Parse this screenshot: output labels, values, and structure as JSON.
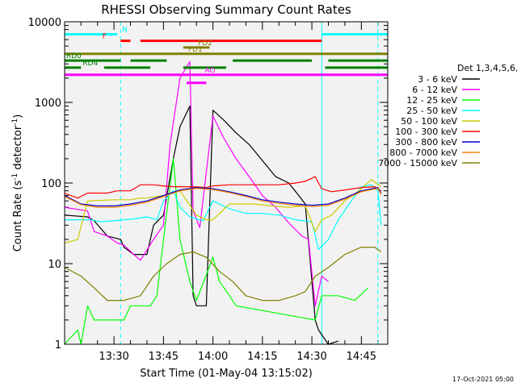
{
  "chart_data": {
    "type": "line",
    "title": "RHESSI Observing Summary Count Rates",
    "xlabel": "Start Time (01-May-04 13:15:02)",
    "ylabel": "Count Rate (s",
    "ylabel_sup1": "-1",
    "ylabel_mid": " detector",
    "ylabel_sup2": "-1",
    "ylabel_end": ")",
    "y_scale": "log",
    "ylim": [
      1,
      10000
    ],
    "xlim": [
      "13:15:02",
      "14:53:00"
    ],
    "x_ticks": [
      "13:30",
      "13:45",
      "14:00",
      "14:15",
      "14:30",
      "14:45"
    ],
    "y_ticks": [
      "1",
      "10",
      "100",
      "1000",
      "10000"
    ],
    "date_stamp": "17-Oct-2021 05:00",
    "legend": {
      "header": "Det 1,3,4,5,6,9",
      "placement": "right"
    },
    "series": [
      {
        "name": "3 - 6 keV",
        "color": "#000000",
        "points": [
          [
            "13:15",
            40
          ],
          [
            "13:22",
            38
          ],
          [
            "13:24",
            34
          ],
          [
            "13:28",
            22
          ],
          [
            "13:32",
            20
          ],
          [
            "13:33",
            16
          ],
          [
            "13:36",
            13
          ],
          [
            "13:40",
            13
          ],
          [
            "13:42",
            30
          ],
          [
            "13:45",
            40
          ],
          [
            "13:48",
            200
          ],
          [
            "13:50",
            500
          ],
          [
            "13:53",
            900
          ],
          [
            "13:54",
            4
          ],
          [
            "13:55",
            3
          ],
          [
            "13:58",
            3
          ],
          [
            "14:00",
            800
          ],
          [
            "14:03",
            620
          ],
          [
            "14:07",
            420
          ],
          [
            "14:11",
            300
          ],
          [
            "14:15",
            190
          ],
          [
            "14:19",
            120
          ],
          [
            "14:23",
            100
          ],
          [
            "14:26",
            70
          ],
          [
            "14:28",
            55
          ],
          [
            "14:31",
            2
          ],
          [
            "14:32",
            1.5
          ],
          [
            "14:35",
            1
          ],
          [
            "14:38",
            1.1
          ]
        ]
      },
      {
        "name": "6 - 12 keV",
        "color": "#ff00ff",
        "points": [
          [
            "13:15",
            50
          ],
          [
            "13:22",
            45
          ],
          [
            "13:24",
            25
          ],
          [
            "13:28",
            22
          ],
          [
            "13:31",
            18
          ],
          [
            "13:33",
            17
          ],
          [
            "13:36",
            13
          ],
          [
            "13:38",
            11
          ],
          [
            "13:42",
            20
          ],
          [
            "13:45",
            30
          ],
          [
            "13:47",
            300
          ],
          [
            "13:50",
            2000
          ],
          [
            "13:53",
            3200
          ],
          [
            "13:54",
            45
          ],
          [
            "13:56",
            28
          ],
          [
            "14:00",
            680
          ],
          [
            "14:03",
            380
          ],
          [
            "14:07",
            200
          ],
          [
            "14:11",
            120
          ],
          [
            "14:15",
            70
          ],
          [
            "14:19",
            50
          ],
          [
            "14:23",
            32
          ],
          [
            "14:27",
            22
          ],
          [
            "14:29",
            20
          ],
          [
            "14:31",
            3
          ],
          [
            "14:33",
            7
          ],
          [
            "14:35",
            6
          ]
        ]
      },
      {
        "name": "12 - 25 keV",
        "color": "#00ff00",
        "points": [
          [
            "13:15",
            1
          ],
          [
            "13:19",
            1.5
          ],
          [
            "13:20",
            1
          ],
          [
            "13:22",
            3
          ],
          [
            "13:24",
            2
          ],
          [
            "13:30",
            2
          ],
          [
            "13:33",
            2
          ],
          [
            "13:35",
            3
          ],
          [
            "13:38",
            3
          ],
          [
            "13:41",
            3
          ],
          [
            "13:43",
            4
          ],
          [
            "13:45",
            20
          ],
          [
            "13:48",
            200
          ],
          [
            "13:50",
            20
          ],
          [
            "13:53",
            6
          ],
          [
            "13:55",
            3.5
          ],
          [
            "14:00",
            12
          ],
          [
            "14:02",
            6
          ],
          [
            "14:05",
            4
          ],
          [
            "14:07",
            3
          ],
          [
            "14:31",
            2
          ],
          [
            "14:33",
            4
          ],
          [
            "14:38",
            4
          ],
          [
            "14:43",
            3.5
          ],
          [
            "14:47",
            5
          ]
        ]
      },
      {
        "name": "25 - 50 keV",
        "color": "#00ffff",
        "points": [
          [
            "13:15",
            35
          ],
          [
            "13:20",
            35
          ],
          [
            "13:23",
            35
          ],
          [
            "13:26",
            33
          ],
          [
            "13:30",
            34
          ],
          [
            "13:36",
            36
          ],
          [
            "13:40",
            38
          ],
          [
            "13:43",
            35
          ],
          [
            "13:45",
            60
          ],
          [
            "13:48",
            80
          ],
          [
            "13:50",
            50
          ],
          [
            "13:53",
            38
          ],
          [
            "13:57",
            34
          ],
          [
            "14:00",
            60
          ],
          [
            "14:05",
            48
          ],
          [
            "14:10",
            42
          ],
          [
            "14:15",
            42
          ],
          [
            "14:20",
            40
          ],
          [
            "14:25",
            35
          ],
          [
            "14:30",
            33
          ],
          [
            "14:32",
            15
          ],
          [
            "14:35",
            20
          ],
          [
            "14:38",
            35
          ],
          [
            "14:42",
            60
          ],
          [
            "14:45",
            90
          ],
          [
            "14:48",
            95
          ],
          [
            "14:50",
            80
          ],
          [
            "14:51",
            30
          ]
        ]
      },
      {
        "name": "50 - 100 keV",
        "color": "#cccc00",
        "points": [
          [
            "13:15",
            18
          ],
          [
            "13:19",
            20
          ],
          [
            "13:22",
            60
          ],
          [
            "13:30",
            62
          ],
          [
            "13:35",
            62
          ],
          [
            "13:38",
            65
          ],
          [
            "13:40",
            65
          ],
          [
            "13:45",
            70
          ],
          [
            "13:50",
            80
          ],
          [
            "13:55",
            40
          ],
          [
            "13:58",
            35
          ],
          [
            "14:00",
            35
          ],
          [
            "14:05",
            55
          ],
          [
            "14:12",
            55
          ],
          [
            "14:18",
            52
          ],
          [
            "14:23",
            50
          ],
          [
            "14:28",
            52
          ],
          [
            "14:31",
            25
          ],
          [
            "14:33",
            35
          ],
          [
            "14:36",
            40
          ],
          [
            "14:40",
            60
          ],
          [
            "14:45",
            85
          ],
          [
            "14:48",
            110
          ],
          [
            "14:51",
            90
          ]
        ]
      },
      {
        "name": "100 - 300 keV",
        "color": "#ff0000",
        "points": [
          [
            "13:15",
            75
          ],
          [
            "13:19",
            65
          ],
          [
            "13:22",
            75
          ],
          [
            "13:28",
            75
          ],
          [
            "13:31",
            80
          ],
          [
            "13:35",
            80
          ],
          [
            "13:38",
            95
          ],
          [
            "13:42",
            95
          ],
          [
            "13:45",
            92
          ],
          [
            "13:48",
            90
          ],
          [
            "13:51",
            90
          ],
          [
            "13:54",
            90
          ],
          [
            "13:58",
            88
          ],
          [
            "14:00",
            92
          ],
          [
            "14:05",
            95
          ],
          [
            "14:10",
            95
          ],
          [
            "14:15",
            95
          ],
          [
            "14:20",
            95
          ],
          [
            "14:25",
            100
          ],
          [
            "14:28",
            105
          ],
          [
            "14:31",
            120
          ],
          [
            "14:33",
            85
          ],
          [
            "14:36",
            78
          ],
          [
            "14:40",
            82
          ],
          [
            "14:45",
            88
          ],
          [
            "14:49",
            90
          ],
          [
            "14:51",
            80
          ]
        ]
      },
      {
        "name": "300 - 800 keV",
        "color": "#0000cc",
        "points": [
          [
            "13:15",
            70
          ],
          [
            "13:20",
            55
          ],
          [
            "13:25",
            52
          ],
          [
            "13:30",
            52
          ],
          [
            "13:35",
            55
          ],
          [
            "13:40",
            60
          ],
          [
            "13:45",
            70
          ],
          [
            "13:50",
            82
          ],
          [
            "13:55",
            88
          ],
          [
            "14:00",
            85
          ],
          [
            "14:05",
            78
          ],
          [
            "14:10",
            70
          ],
          [
            "14:15",
            62
          ],
          [
            "14:20",
            58
          ],
          [
            "14:25",
            55
          ],
          [
            "14:30",
            53
          ],
          [
            "14:35",
            55
          ],
          [
            "14:40",
            65
          ],
          [
            "14:45",
            80
          ],
          [
            "14:50",
            88
          ],
          [
            "14:51",
            75
          ]
        ]
      },
      {
        "name": "800 - 7000 keV",
        "color": "#ff8000",
        "points": [
          [
            "13:15",
            68
          ],
          [
            "13:20",
            54
          ],
          [
            "13:25",
            50
          ],
          [
            "13:30",
            50
          ],
          [
            "13:35",
            53
          ],
          [
            "13:40",
            58
          ],
          [
            "13:45",
            68
          ],
          [
            "13:50",
            80
          ],
          [
            "13:55",
            86
          ],
          [
            "14:00",
            83
          ],
          [
            "14:05",
            76
          ],
          [
            "14:10",
            68
          ],
          [
            "14:15",
            60
          ],
          [
            "14:20",
            56
          ],
          [
            "14:25",
            53
          ],
          [
            "14:30",
            51
          ],
          [
            "14:35",
            53
          ],
          [
            "14:40",
            63
          ],
          [
            "14:45",
            78
          ],
          [
            "14:50",
            86
          ],
          [
            "14:51",
            72
          ]
        ]
      },
      {
        "name": "7000 - 15000 keV",
        "color": "#808000",
        "points": [
          [
            "13:15",
            9
          ],
          [
            "13:20",
            7
          ],
          [
            "13:24",
            5
          ],
          [
            "13:28",
            3.5
          ],
          [
            "13:33",
            3.5
          ],
          [
            "13:38",
            4
          ],
          [
            "13:42",
            7
          ],
          [
            "13:46",
            10
          ],
          [
            "13:50",
            13
          ],
          [
            "13:54",
            14
          ],
          [
            "13:58",
            12
          ],
          [
            "14:02",
            8
          ],
          [
            "14:06",
            6
          ],
          [
            "14:10",
            4
          ],
          [
            "14:15",
            3.5
          ],
          [
            "14:20",
            3.5
          ],
          [
            "14:25",
            4
          ],
          [
            "14:28",
            4.5
          ],
          [
            "14:31",
            7
          ],
          [
            "14:35",
            9
          ],
          [
            "14:40",
            13
          ],
          [
            "14:45",
            16
          ],
          [
            "14:49",
            16
          ],
          [
            "14:51",
            14
          ]
        ]
      }
    ],
    "state_bars": [
      {
        "label": "N",
        "color": "#00ffff",
        "y": 7000,
        "label_x": "13:32",
        "segments": [
          [
            "13:15",
            "13:31"
          ],
          [
            "14:33",
            "14:53"
          ]
        ]
      },
      {
        "label": "F",
        "color": "#ff0000",
        "y": 5800,
        "label_x": "13:26",
        "segments": [
          [
            "13:32",
            "13:35"
          ],
          [
            "13:38",
            "14:33"
          ]
        ]
      },
      {
        "label": "FD1",
        "color": "#808000",
        "y": 4000,
        "label_x": "13:52",
        "segments": [
          [
            "13:15",
            "14:53"
          ]
        ]
      },
      {
        "label": "FD2",
        "color": "#808000",
        "y": 4800,
        "label_x": "13:55",
        "segments": [
          [
            "13:51",
            "13:59"
          ]
        ]
      },
      {
        "label": "RD0",
        "color": "#008000",
        "y": 3300,
        "label_x": "13:15",
        "segments": [
          [
            "13:15",
            "13:32"
          ],
          [
            "13:35",
            "13:46"
          ],
          [
            "14:06",
            "14:30"
          ],
          [
            "14:35",
            "14:53"
          ]
        ]
      },
      {
        "label": "RD4",
        "color": "#008000",
        "y": 2700,
        "label_x": "13:20",
        "segments": [
          [
            "13:15",
            "13:20"
          ],
          [
            "13:27",
            "13:41"
          ],
          [
            "13:51",
            "14:04"
          ],
          [
            "14:34",
            "14:53"
          ]
        ]
      },
      {
        "label": "AO",
        "color": "#ff00ff",
        "y": 2200,
        "label_x": "13:57",
        "segments": [
          [
            "13:15",
            "14:53"
          ]
        ]
      },
      {
        "label": "",
        "color": "#ff00ff",
        "y": 1750,
        "label_x": "13:51",
        "segments": [
          [
            "13:52",
            "13:58"
          ]
        ]
      }
    ],
    "vlines": [
      {
        "x": "13:32",
        "color": "#00ffff"
      },
      {
        "x": "14:50",
        "color": "#00ffff"
      },
      {
        "x": "14:33",
        "color": "#00ffff",
        "solid": true
      }
    ]
  }
}
